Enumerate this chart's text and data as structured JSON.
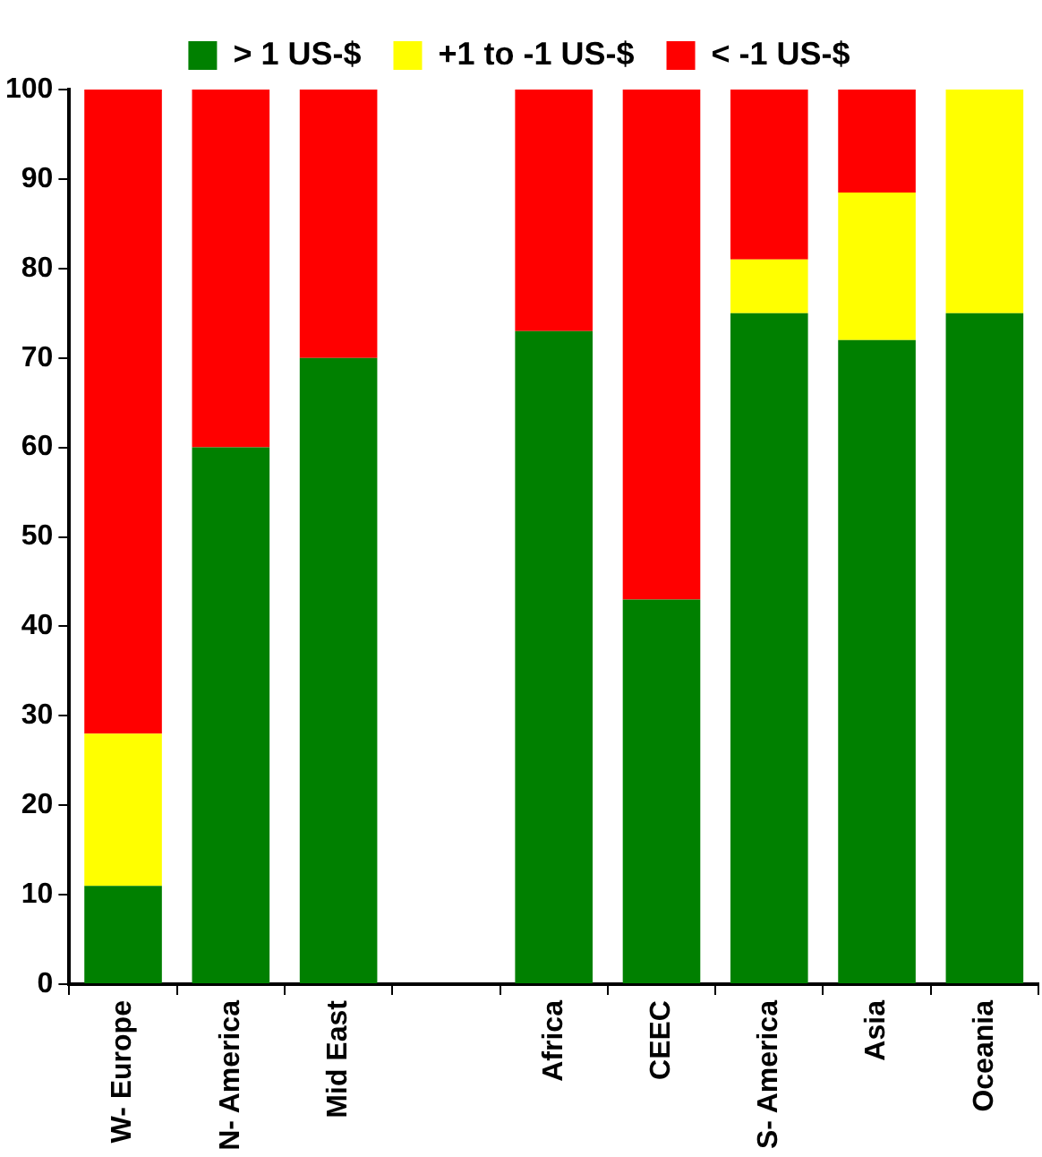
{
  "chart_data": {
    "type": "bar",
    "stacked": true,
    "categories": [
      "W- Europe",
      "N- America",
      "Mid East",
      null,
      "Africa",
      "CEEC",
      "S- America",
      "Asia",
      "Oceania"
    ],
    "series": [
      {
        "name": "> 1 US-$",
        "color": "#008000",
        "values": [
          11,
          60,
          70,
          null,
          73,
          43,
          75,
          72,
          75
        ]
      },
      {
        "name": "+1 to -1 US-$",
        "color": "#ffff00",
        "values": [
          17,
          0,
          0,
          null,
          0,
          0,
          6,
          16.5,
          25
        ]
      },
      {
        "name": "< -1 US-$",
        "color": "#ff0000",
        "values": [
          72,
          40,
          30,
          null,
          27,
          57,
          19,
          11.5,
          0
        ]
      }
    ],
    "ylim": [
      0,
      100
    ],
    "yticks": [
      0,
      10,
      20,
      30,
      40,
      50,
      60,
      70,
      80,
      90,
      100
    ],
    "grid": false,
    "legend": "top"
  }
}
